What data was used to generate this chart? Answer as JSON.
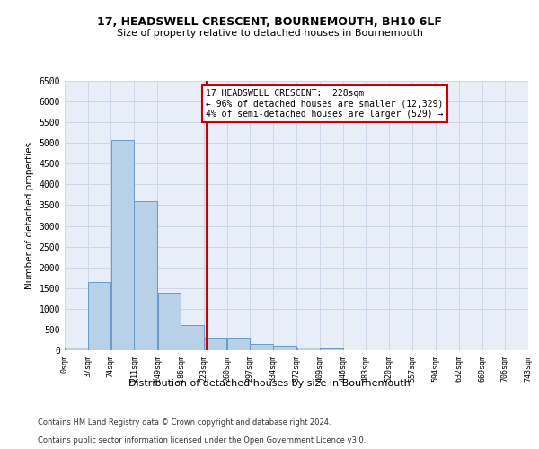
{
  "title1": "17, HEADSWELL CRESCENT, BOURNEMOUTH, BH10 6LF",
  "title2": "Size of property relative to detached houses in Bournemouth",
  "xlabel": "Distribution of detached houses by size in Bournemouth",
  "ylabel": "Number of detached properties",
  "footnote1": "Contains HM Land Registry data © Crown copyright and database right 2024.",
  "footnote2": "Contains public sector information licensed under the Open Government Licence v3.0.",
  "annotation_title": "17 HEADSWELL CRESCENT:  228sqm",
  "annotation_line1": "← 96% of detached houses are smaller (12,329)",
  "annotation_line2": "4% of semi-detached houses are larger (529) →",
  "property_size": 228,
  "bin_edges": [
    0,
    37,
    74,
    111,
    149,
    186,
    223,
    260,
    297,
    334,
    372,
    409,
    446,
    483,
    520,
    557,
    594,
    632,
    669,
    706,
    743
  ],
  "bar_heights": [
    75,
    1650,
    5080,
    3600,
    1390,
    610,
    300,
    300,
    150,
    100,
    75,
    50,
    0,
    0,
    0,
    0,
    0,
    0,
    0,
    0
  ],
  "bar_color": "#b8d0e8",
  "bar_edge_color": "#6699cc",
  "vline_color": "#cc0000",
  "vline_x": 228,
  "annotation_box_color": "#cc0000",
  "grid_color": "#ccd6e8",
  "background_color": "#e8eef8",
  "ylim": [
    0,
    6500
  ],
  "yticks": [
    0,
    500,
    1000,
    1500,
    2000,
    2500,
    3000,
    3500,
    4000,
    4500,
    5000,
    5500,
    6000,
    6500
  ]
}
